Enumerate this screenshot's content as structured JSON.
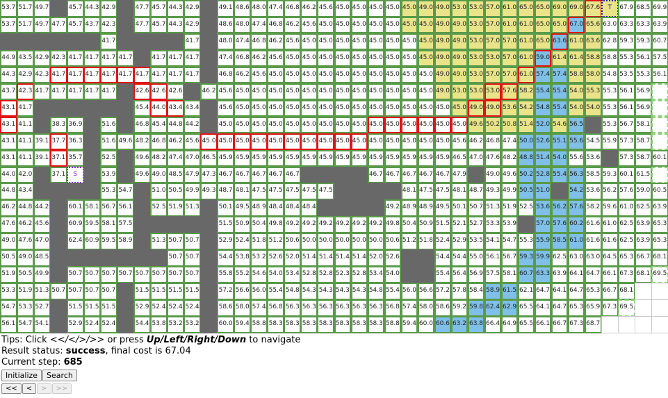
{
  "grid": {
    "rows": [
      "53.7 51.7 49.7 # 45.7 44.3 42.9 # 47.7 45.7 44.3 42.9 # 49.1 48.6 48.0 47.4 46.8 46.2 45.6 45.0 45.0 45.0 45.0 45.0 49.0 49.0 53.0 53.0 57.0 61.0 65.0 65.0 69.0 69.0 67.6 T 67.9 68.5 69.9 71.3",
      "53.7 51.7 49.7 47.7 45.7 43.7 42.3 # 47.7 45.7 44.3 42.9 # 48.6 48.0 47.4 46.8 46.2 45.6 45.0 45.0 45.0 45.0 45.0 45.0 45.0 49.0 49.0 53.0 57.0 61.0 61.0 65.0 65.0 67.0 65.6 63.0 63.3 63.3 63.9 65.3 66.7",
      "# # # # # # 41.7 # # # # 41.7 # 48.0 47.4 46.8 46.2 45.6 45.0 45.0 45.0 45.0 45.0 45.0 45.0 45.0 49.0 49.0 53.0 57.0 57.0 61.0 65.0 63.6 61.0 63.6 62.8 59.3 59.3 60.7 62.1",
      "44.9 43.5 42.9 42.3 41.7 41.7 41.7 41.7 # 41.7 41.7 41.7 # 47.4 46.8 46.2 45.6 45.0 45.0 45.0 45.0 45.0 45.0 45.0 45.0 45.0 49.0 49.0 53.0 53.0 57.0 61.0 59.0 61.4 61.4 58.8 58.8 55.3 56.1 57.5",
      "44.3 42.9 42.3 41.7 41.7 41.7 41.7 41.7 41.7 41.7 41.7 41.7 # 46.8 46.2 45.6 45.0 45.0 45.0 45.0 45.0 45.0 45.0 45.0 45.0 45.0 49.0 49.0 53.0 57.0 57.0 61.0 57.4 57.4 58.8 58.0 54.8 53.5 55.3 56.1 56.9",
      "43.7 42.3 41.7 41.7 41.7 41.7 41.7 # 42.6 42.6 42.6 # 46.2 45.6 45.0 45.0 45.0 45.0 45.0 45.0 45.0 45.0 45.0 45.0 45.0 45.0 49.0 53.0 53.0 53.0 57.6 58.2 55.4 55.4 54.0 55.3 55.3 56.1 56.9",
      "43.1 41.7 # # # # # # 45.4 44.0 43.4 43.4 # 45.6 45.0 45.0 45.0 45.0 45.0 45.0 45.0 45.0 45.0 45.0 45.0 45.0 45.0 45.0 49.0 49.0 53.6 54.2 54.8 55.4 54.0 54.0 55.3 56.1 56.9",
      "43.1 41.1 # 38.3 36.9 # 51.6 # 46.8 45.4 44.8 44.2 # 45.0 45.0 45.0 45.0 45.0 45.0 45.0 45.0 45.0 45.0 45.0 45.0 45.0 45.0 45.0 49.6 50.2 50.8 51.4 52.0 54.6 56.5 # 55.3 56.7 58.1",
      "43.1 41.1 39.1 37.7 36.3 # 51.6 49.6 48.2 46.8 46.2 45.6 45.0 45.0 45.0 45.0 45.0 45.0 45.0 45.0 45.0 45.0 45.0 45.0 45.0 45.0 45.0 45.6 46.2 46.8 47.4 50.0 52.6 55.1 55.6 54.5 55.9 57.3 58.7",
      "43.1 41.1 39.1 37.1 35.7 # 52.5 # 49.6 48.2 47.4 47.0 46.5 45.9 45.9 45.9 45.9 45.9 45.9 45.9 45.9 45.9 45.9 45.9 45.9 45.9 45.9 46.5 47.0 47.6 48.2 48.8 51.4 54.0 55.6 53.6 # 57.3 58.7 60.1",
      "44.0 42.0 # 37.1 S # 53.9 # 49.6 49.0 48.5 47.9 47.3 46.7 46.7 46.7 46.7 46.7 # # # # 46.7 46.7 46.7 46.7 46.7 47.9 # 49.0 49.6 50.2 52.8 55.4 56.3 58.5 59.3 60.1 61.5",
      "44.8 43.4 # # # # 55.3 54.7 # 51.0 50.5 49.9 49.3 48.7 48.1 47.5 47.5 47.5 47.5 47.5 # # # # 48.1 47.5 47.5 48.1 48.7 49.3 49.9 50.5 51.0 # 54.2 53.6 56.2 57.6 59.0 60.5 61.9 62.9",
      "46.2 44.8 44.2 # 60.1 58.1 56.7 56.1 # 52.5 51.9 51.3 # 50.1 49.5 48.9 48.4 48.4 48.4 # # # # 49.2 48.9 48.9 49.5 50.1 50.7 51.3 51.9 52.5 53.6 56.2 57.6 58.2 59.6 61.0 62.5 63.9",
      "47.6 46.2 45.6 # 60.9 59.5 58.1 57.5 # # # # # 51.5 50.9 50.4 49.8 49.2 49.2 49.2 49.2 49.2 49.2 49.8 50.4 50.9 51.5 52.1 52.7 53.3 53.9 # 57.0 57.6 60.2 61.6 61.0 62.5 63.9 65.3",
      "49.0 47.6 47.0 # 62.4 60.9 59.5 58.9 # 51.3 50.7 50.7 # 52.9 52.4 51.8 51.2 50.6 50.0 50.0 50.0 50.0 50.0 50.6 51.2 51.8 52.4 52.9 53.5 54.1 54.7 55.3 55.9 58.5 61.0 61.6 61.6 62.5 63.9 65.3 66.7",
      "50.5 49.0 48.5 # # # # # # # 50.7 50.7 # 54.4 53.8 53.2 52.6 52.0 51.4 51.4 51.4 51.4 52.0 52.6 # # 54.4 54.4 55.0 56.1 56.7 59.3 59.9 62.5 63.0 63.0 64.5 65.3 66.7 68.1",
      "51.9 50.5 49.9 # 50.7 50.7 50.7 50.7 50.7 50.7 50.7 50.7 # 55.8 55.2 54.6 54.0 53.4 52.8 52.8 52.3 52.8 53.4 54.0 # # 55.4 56.4 56.9 57.5 58.1 60.7 63.3 63.9 64.1 64.7 66.1 67.3 68.1 69.5",
      "53.3 51.9 51.3 50.7 50.7 50.7 50.7 # 51.5 51.5 51.5 51.5 # 57.2 56.6 56.0 55.4 54.8 54.3 54.3 54.3 54.3 54.8 55.4 56.0 56.6 57.2 57.8 58.4 58.9 61.5 62.1 64.7 64.1 64.7 65.3 66.7 68.1 _ _",
      "54.7 53.3 52.7 # 51.5 51.5 51.5 # 52.9 52.4 52.4 52.4 # 58.6 58.0 57.4 56.8 56.3 56.3 56.3 56.3 56.3 56.3 56.8 57.4 58.0 58.6 59.2 59.8 62.4 62.9 65.5 64.1 64.7 65.3 65.9 67.3 69.5 _ _",
      "56.1 54.7 54.1 # 52.9 52.4 52.4 # 54.4 53.8 53.2 53.2 # 60.0 59.4 58.8 58.3 58.3 58.3 58.3 58.3 58.3 58.3 58.8 59.4 60.0 60.6 63.2 63.8 66.4 64.9 65.5 66.1 66.7 67.3 68.7 _ _ _ _"
    ],
    "legend_marks": {
      "wall": "#",
      "start": "S",
      "target": "T",
      "unexplored": "_"
    },
    "colors": {
      "border": "#5a9a4a",
      "wall": "#686868",
      "open_cell_highlight_blue": "#7fbfe8",
      "open_cell_highlight_yellow": "#e9e48a",
      "path": "#e01414",
      "start": "#8a2be2",
      "target": "#1a1aa0"
    }
  },
  "tips": {
    "prefix": "Tips: Click ",
    "nav_symbols": "<</</>/>>",
    "middle": " or press ",
    "keys": "Up/Left/Right/Down",
    "suffix": " to navigate"
  },
  "result": {
    "prefix": "Result status: ",
    "status": "success",
    "suffix": ", final cost is 67.04"
  },
  "step": {
    "prefix": "Current step: ",
    "value": "685"
  },
  "buttons": {
    "initialize": "Initialize",
    "search": "Search",
    "first": "<<",
    "prev": "<",
    "next": ">",
    "last": ">>"
  }
}
